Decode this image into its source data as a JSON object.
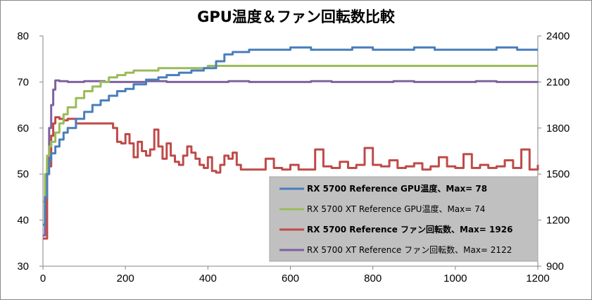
{
  "chart_data": {
    "type": "line",
    "title": "GPU温度＆ファン回転数比較",
    "xlabel": "",
    "ylabel_left": "",
    "ylabel_right": "",
    "xlim": [
      0,
      1200
    ],
    "ylim_left": [
      30,
      80
    ],
    "ylim_right": [
      900,
      2400
    ],
    "grid": false,
    "legend_position": "bottom-right",
    "x_ticks": [
      "0",
      "200",
      "400",
      "600",
      "800",
      "1000",
      "1200"
    ],
    "y_left_ticks": [
      "30",
      "40",
      "50",
      "60",
      "70",
      "80"
    ],
    "y_right_ticks": [
      "900",
      "1200",
      "1500",
      "1800",
      "2100",
      "2400"
    ],
    "series": [
      {
        "name": "RX 5700 Reference GPU温度、Max= 78",
        "axis": "left",
        "color": "#4a7ebb",
        "bold": true,
        "x": [
          0,
          5,
          10,
          15,
          20,
          30,
          40,
          50,
          60,
          80,
          100,
          120,
          140,
          160,
          180,
          200,
          220,
          250,
          280,
          300,
          330,
          360,
          390,
          420,
          440,
          460,
          500,
          550,
          600,
          650,
          700,
          750,
          800,
          850,
          900,
          950,
          1000,
          1050,
          1100,
          1150,
          1200
        ],
        "y": [
          39,
          45,
          50,
          53,
          54.5,
          56,
          57.5,
          59,
          60,
          62,
          63.5,
          65,
          66,
          67,
          68,
          68.5,
          69.5,
          70.5,
          71,
          71.5,
          72,
          72.5,
          73,
          74.5,
          76,
          76.5,
          77,
          77,
          77.5,
          77,
          77,
          77.5,
          77,
          77,
          77.5,
          77,
          77,
          77,
          77.5,
          77,
          77
        ]
      },
      {
        "name": "RX 5700 XT Reference GPU温度、Max= 74",
        "axis": "left",
        "color": "#9bbb59",
        "bold": false,
        "x": [
          0,
          5,
          10,
          15,
          20,
          30,
          40,
          50,
          60,
          80,
          100,
          120,
          140,
          160,
          180,
          200,
          220,
          250,
          280,
          300,
          350,
          400,
          450,
          500,
          600,
          700,
          800,
          900,
          1000,
          1100,
          1200
        ],
        "y": [
          44,
          50,
          54,
          56,
          57,
          59,
          61,
          63,
          64.5,
          66.5,
          68,
          69,
          70,
          71,
          71.5,
          72,
          72.5,
          72.5,
          73,
          73,
          73,
          73.5,
          73.5,
          73.5,
          73.5,
          73.5,
          73.5,
          73.5,
          73.5,
          73.5,
          73.5
        ]
      },
      {
        "name": "RX 5700 Reference ファン回転数、Max= 1926",
        "axis": "right",
        "color": "#be4b48",
        "bold": true,
        "x": [
          0,
          10,
          20,
          25,
          30,
          40,
          50,
          60,
          80,
          100,
          120,
          140,
          160,
          170,
          180,
          190,
          200,
          210,
          220,
          230,
          240,
          250,
          260,
          270,
          280,
          290,
          300,
          310,
          320,
          330,
          340,
          350,
          360,
          370,
          380,
          390,
          400,
          410,
          420,
          430,
          440,
          450,
          460,
          470,
          480,
          490,
          500,
          520,
          540,
          560,
          580,
          600,
          620,
          640,
          660,
          680,
          700,
          720,
          740,
          760,
          780,
          800,
          820,
          840,
          860,
          880,
          900,
          920,
          940,
          960,
          980,
          1000,
          1020,
          1040,
          1060,
          1080,
          1100,
          1120,
          1140,
          1160,
          1180,
          1200
        ],
        "y": [
          1080,
          1550,
          1750,
          1830,
          1870,
          1860,
          1850,
          1860,
          1830,
          1830,
          1830,
          1830,
          1830,
          1800,
          1710,
          1700,
          1760,
          1700,
          1610,
          1710,
          1650,
          1620,
          1660,
          1790,
          1680,
          1600,
          1700,
          1620,
          1580,
          1560,
          1620,
          1680,
          1640,
          1600,
          1560,
          1540,
          1610,
          1520,
          1510,
          1560,
          1620,
          1600,
          1640,
          1560,
          1530,
          1530,
          1530,
          1530,
          1600,
          1540,
          1530,
          1560,
          1530,
          1530,
          1660,
          1550,
          1540,
          1580,
          1540,
          1560,
          1670,
          1560,
          1550,
          1590,
          1540,
          1550,
          1570,
          1530,
          1550,
          1610,
          1550,
          1540,
          1630,
          1540,
          1560,
          1540,
          1550,
          1590,
          1540,
          1660,
          1530,
          1560
        ]
      },
      {
        "name": "RX 5700 XT Reference ファン回転数、Max= 2122",
        "axis": "right",
        "color": "#7e62a1",
        "bold": false,
        "x": [
          0,
          5,
          10,
          15,
          20,
          25,
          30,
          40,
          60,
          80,
          100,
          150,
          200,
          250,
          300,
          350,
          400,
          450,
          500,
          550,
          600,
          650,
          700,
          750,
          800,
          850,
          900,
          950,
          1000,
          1050,
          1100,
          1150,
          1200
        ],
        "y": [
          1100,
          1350,
          1600,
          1800,
          1950,
          2050,
          2110,
          2105,
          2100,
          2100,
          2105,
          2100,
          2100,
          2105,
          2100,
          2100,
          2100,
          2105,
          2100,
          2100,
          2100,
          2105,
          2100,
          2100,
          2100,
          2105,
          2100,
          2100,
          2100,
          2105,
          2100,
          2100,
          2105
        ]
      }
    ]
  }
}
